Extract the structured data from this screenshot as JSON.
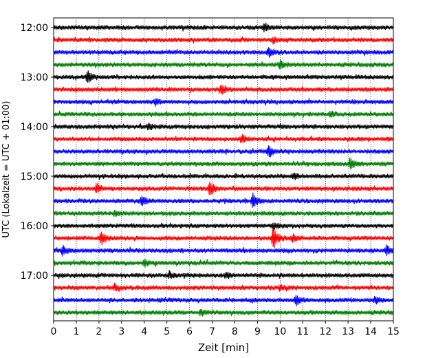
{
  "chart_data": {
    "type": "line",
    "title": "",
    "xlabel": "Zeit  [min]",
    "ylabel": "UTC (Lokalzeit = UTC + 01:00)",
    "xlim": [
      0,
      15
    ],
    "x_ticks": [
      "0",
      "1",
      "2",
      "3",
      "4",
      "5",
      "6",
      "7",
      "8",
      "9",
      "10",
      "11",
      "12",
      "13",
      "14",
      "15"
    ],
    "y_tick_labels": [
      "12:00",
      "13:00",
      "14:00",
      "15:00",
      "16:00",
      "17:00"
    ],
    "grid": "vertical dotted lines at each minute",
    "color_cycle": [
      "#000000",
      "#ff0000",
      "#0000ff",
      "#008000"
    ],
    "series": [
      {
        "start": "12:00",
        "color": "#000000",
        "events": [
          {
            "x": 9.3,
            "amp": 0.6
          }
        ]
      },
      {
        "start": "12:15",
        "color": "#ff0000",
        "events": [
          {
            "x": 9.7,
            "amp": 0.4
          }
        ]
      },
      {
        "start": "12:30",
        "color": "#0000ff",
        "events": [
          {
            "x": 9.5,
            "amp": 0.8
          }
        ]
      },
      {
        "start": "12:45",
        "color": "#008000",
        "events": [
          {
            "x": 10.0,
            "amp": 0.6
          }
        ]
      },
      {
        "start": "13:00",
        "color": "#000000",
        "events": [
          {
            "x": 1.5,
            "amp": 1.0
          }
        ]
      },
      {
        "start": "13:15",
        "color": "#ff0000",
        "events": [
          {
            "x": 7.4,
            "amp": 0.9
          }
        ]
      },
      {
        "start": "13:30",
        "color": "#0000ff",
        "events": [
          {
            "x": 4.5,
            "amp": 0.5
          }
        ]
      },
      {
        "start": "13:45",
        "color": "#008000",
        "events": [
          {
            "x": 12.2,
            "amp": 0.4
          }
        ]
      },
      {
        "start": "14:00",
        "color": "#000000",
        "events": [
          {
            "x": 4.2,
            "amp": 0.5
          }
        ]
      },
      {
        "start": "14:15",
        "color": "#ff0000",
        "events": [
          {
            "x": 8.3,
            "amp": 0.6
          }
        ]
      },
      {
        "start": "14:30",
        "color": "#0000ff",
        "events": [
          {
            "x": 9.5,
            "amp": 0.9
          }
        ]
      },
      {
        "start": "14:45",
        "color": "#008000",
        "events": [
          {
            "x": 13.1,
            "amp": 0.9
          }
        ]
      },
      {
        "start": "15:00",
        "color": "#000000",
        "events": [
          {
            "x": 10.6,
            "amp": 0.5
          }
        ]
      },
      {
        "start": "15:15",
        "color": "#ff0000",
        "events": [
          {
            "x": 1.9,
            "amp": 0.8
          },
          {
            "x": 6.9,
            "amp": 1.3
          }
        ]
      },
      {
        "start": "15:30",
        "color": "#0000ff",
        "events": [
          {
            "x": 3.9,
            "amp": 0.8
          },
          {
            "x": 8.8,
            "amp": 1.2
          }
        ]
      },
      {
        "start": "15:45",
        "color": "#008000",
        "events": [
          {
            "x": 2.7,
            "amp": 0.4
          }
        ]
      },
      {
        "start": "16:00",
        "color": "#000000",
        "events": [
          {
            "x": 9.7,
            "amp": 0.5
          }
        ]
      },
      {
        "start": "16:15",
        "color": "#ff0000",
        "events": [
          {
            "x": 2.1,
            "amp": 1.1
          },
          {
            "x": 9.7,
            "amp": 1.9
          },
          {
            "x": 10.6,
            "amp": 0.6
          }
        ]
      },
      {
        "start": "16:30",
        "color": "#0000ff",
        "events": [
          {
            "x": 0.4,
            "amp": 0.7
          },
          {
            "x": 14.7,
            "amp": 0.7
          }
        ]
      },
      {
        "start": "16:45",
        "color": "#008000",
        "events": [
          {
            "x": 4.0,
            "amp": 0.6
          }
        ]
      },
      {
        "start": "17:00",
        "color": "#000000",
        "events": [
          {
            "x": 5.1,
            "amp": 0.5
          },
          {
            "x": 7.6,
            "amp": 0.5
          }
        ]
      },
      {
        "start": "17:15",
        "color": "#ff0000",
        "events": [
          {
            "x": 2.7,
            "amp": 0.5
          },
          {
            "x": 10.0,
            "amp": 0.4
          }
        ]
      },
      {
        "start": "17:30",
        "color": "#0000ff",
        "events": [
          {
            "x": 10.7,
            "amp": 0.9
          },
          {
            "x": 14.2,
            "amp": 0.5
          }
        ]
      },
      {
        "start": "17:45",
        "color": "#008000",
        "events": [
          {
            "x": 6.5,
            "amp": 0.4
          }
        ]
      }
    ]
  }
}
